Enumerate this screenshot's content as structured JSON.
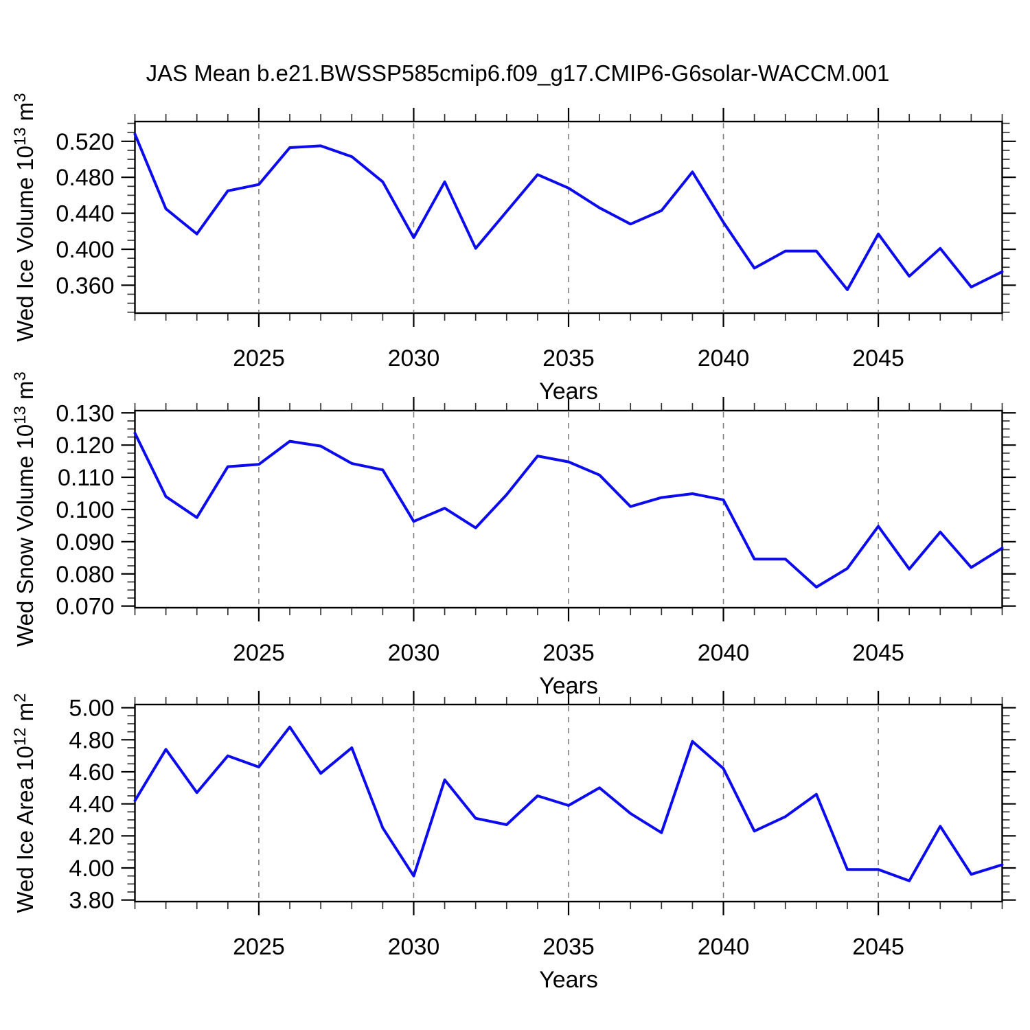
{
  "title": "JAS Mean b.e21.BWSSP585cmip6.f09_g17.CMIP6-G6solar-WACCM.001",
  "colors": {
    "line": "#0b0bee",
    "grid": "#7f7f7f",
    "frame": "#000000",
    "minor_tick": "#333333",
    "text": "#000000"
  },
  "chart_data": [
    {
      "type": "line",
      "panel": 1,
      "ylabel": "Wed Ice Volume 10^13 m^3",
      "ylabel_rich": [
        {
          "t": "Wed Ice Volume 10"
        },
        {
          "t": "13",
          "sup": true
        },
        {
          "t": " m"
        },
        {
          "t": "3",
          "sup": true
        }
      ],
      "xlabel": "Years",
      "x": [
        2021,
        2022,
        2023,
        2024,
        2025,
        2026,
        2027,
        2028,
        2029,
        2030,
        2031,
        2032,
        2033,
        2034,
        2035,
        2036,
        2037,
        2038,
        2039,
        2040,
        2041,
        2042,
        2043,
        2044,
        2045,
        2046,
        2047,
        2048,
        2049
      ],
      "values": [
        0.528,
        0.445,
        0.417,
        0.465,
        0.472,
        0.513,
        0.515,
        0.503,
        0.475,
        0.413,
        0.475,
        0.401,
        0.442,
        0.483,
        0.468,
        0.446,
        0.428,
        0.443,
        0.486,
        0.43,
        0.379,
        0.398,
        0.398,
        0.355,
        0.417,
        0.37,
        0.401,
        0.358,
        0.375
      ],
      "xlim": [
        2021,
        2049
      ],
      "xticks": [
        2025,
        2030,
        2035,
        2040,
        2045
      ],
      "xminor_step": 1,
      "ylim": [
        0.329,
        0.542
      ],
      "yticks": [
        0.36,
        0.4,
        0.44,
        0.48,
        0.52
      ],
      "ytick_decimals": 3,
      "yminor_step": 0.01,
      "grid": "vertical-dashed-at-major-xticks",
      "legend": "none"
    },
    {
      "type": "line",
      "panel": 2,
      "ylabel": "Wed Snow Volume 10^13 m^3",
      "ylabel_rich": [
        {
          "t": "Wed Snow Volume 10"
        },
        {
          "t": "13",
          "sup": true
        },
        {
          "t": " m"
        },
        {
          "t": "3",
          "sup": true
        }
      ],
      "xlabel": "Years",
      "x": [
        2021,
        2022,
        2023,
        2024,
        2025,
        2026,
        2027,
        2028,
        2029,
        2030,
        2031,
        2032,
        2033,
        2034,
        2035,
        2036,
        2037,
        2038,
        2039,
        2040,
        2041,
        2042,
        2043,
        2044,
        2045,
        2046,
        2047,
        2048,
        2049
      ],
      "values": [
        0.1237,
        0.104,
        0.0975,
        0.1133,
        0.114,
        0.1212,
        0.1197,
        0.1143,
        0.1123,
        0.0963,
        0.1004,
        0.0943,
        0.1046,
        0.1166,
        0.1148,
        0.1107,
        0.1009,
        0.1037,
        0.1049,
        0.103,
        0.0846,
        0.0846,
        0.0759,
        0.0817,
        0.0948,
        0.0815,
        0.093,
        0.082,
        0.088
      ],
      "xlim": [
        2021,
        2049
      ],
      "xticks": [
        2025,
        2030,
        2035,
        2040,
        2045
      ],
      "xminor_step": 1,
      "ylim": [
        0.0695,
        0.1307
      ],
      "yticks": [
        0.07,
        0.08,
        0.09,
        0.1,
        0.11,
        0.12,
        0.13
      ],
      "ytick_decimals": 3,
      "yminor_step": 0.0025,
      "grid": "vertical-dashed-at-major-xticks",
      "legend": "none"
    },
    {
      "type": "line",
      "panel": 3,
      "ylabel": "Wed Ice Area 10^12 m^2",
      "ylabel_rich": [
        {
          "t": "Wed Ice Area 10"
        },
        {
          "t": "12",
          "sup": true
        },
        {
          "t": " m"
        },
        {
          "t": "2",
          "sup": true
        }
      ],
      "xlabel": "Years",
      "x": [
        2021,
        2022,
        2023,
        2024,
        2025,
        2026,
        2027,
        2028,
        2029,
        2030,
        2031,
        2032,
        2033,
        2034,
        2035,
        2036,
        2037,
        2038,
        2039,
        2040,
        2041,
        2042,
        2043,
        2044,
        2045,
        2046,
        2047,
        2048,
        2049
      ],
      "values": [
        4.42,
        4.74,
        4.47,
        4.7,
        4.63,
        4.88,
        4.59,
        4.75,
        4.25,
        3.95,
        4.55,
        4.31,
        4.27,
        4.45,
        4.39,
        4.5,
        4.34,
        4.22,
        4.79,
        4.62,
        4.23,
        4.32,
        4.46,
        3.99,
        3.99,
        3.92,
        4.26,
        3.96,
        4.02
      ],
      "xlim": [
        2021,
        2049
      ],
      "xticks": [
        2025,
        2030,
        2035,
        2040,
        2045
      ],
      "xminor_step": 1,
      "ylim": [
        3.79,
        5.02
      ],
      "yticks": [
        3.8,
        4.0,
        4.2,
        4.4,
        4.6,
        4.8,
        5.0
      ],
      "ytick_decimals": 2,
      "yminor_step": 0.05,
      "grid": "vertical-dashed-at-major-xticks",
      "legend": "none"
    }
  ]
}
